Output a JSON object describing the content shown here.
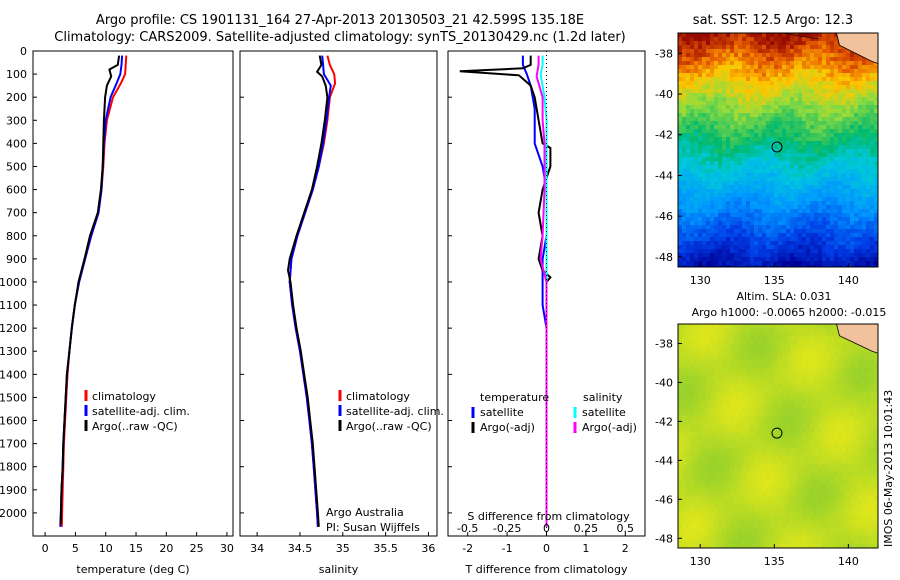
{
  "figure": {
    "title_line1": "Argo profile: CS 1901131_164 27-Apr-2013 20130503_21 42.599S 135.18E",
    "title_line2": "Climatology: CARS2009. Satellite-adjusted climatology: synTS_20130429.nc (1.2d later)",
    "timestamp": "IMOS 06-May-2013 10:01:43",
    "credit_line1": "Argo Australia",
    "credit_line2": "PI: Susan Wijffels"
  },
  "colors": {
    "climatology": "#ff0000",
    "satellite": "#0000ff",
    "argo": "#000000",
    "salinity_satellite": "#00ffff",
    "salinity_argo": "#ff00ff",
    "land": "#f2c29c"
  },
  "chart_data": [
    {
      "type": "line",
      "id": "temperature",
      "xlabel": "temperature (deg C)",
      "ylabel": "",
      "xlim": [
        -2,
        31
      ],
      "ylim": [
        2100,
        0
      ],
      "xticks": [
        0,
        5,
        10,
        15,
        20,
        25,
        30
      ],
      "yticks": [
        0,
        100,
        200,
        300,
        400,
        500,
        600,
        700,
        800,
        900,
        1000,
        1100,
        1200,
        1300,
        1400,
        1500,
        1600,
        1700,
        1800,
        1900,
        2000
      ],
      "legend": {
        "position": "lower-right",
        "entries": [
          "climatology",
          "satellite-adj. clim.",
          "Argo(..raw -QC)"
        ]
      },
      "series": [
        {
          "name": "climatology",
          "color": "#ff0000",
          "points": [
            [
              13.4,
              20
            ],
            [
              13.3,
              60
            ],
            [
              13.2,
              100
            ],
            [
              12.5,
              140
            ],
            [
              11.2,
              200
            ],
            [
              10.2,
              300
            ],
            [
              9.8,
              400
            ],
            [
              9.6,
              500
            ],
            [
              9.3,
              600
            ],
            [
              8.8,
              700
            ],
            [
              7.6,
              800
            ],
            [
              6.6,
              900
            ],
            [
              5.6,
              1000
            ],
            [
              4.9,
              1100
            ],
            [
              4.4,
              1200
            ],
            [
              4.0,
              1300
            ],
            [
              3.7,
              1400
            ],
            [
              3.5,
              1500
            ],
            [
              3.3,
              1600
            ],
            [
              3.1,
              1700
            ],
            [
              3.0,
              1800
            ],
            [
              2.9,
              1900
            ],
            [
              2.8,
              2000
            ],
            [
              2.75,
              2060
            ]
          ]
        },
        {
          "name": "satellite-adj. clim.",
          "color": "#0000ff",
          "points": [
            [
              12.7,
              20
            ],
            [
              12.6,
              60
            ],
            [
              12.4,
              100
            ],
            [
              11.8,
              140
            ],
            [
              10.8,
              200
            ],
            [
              10.0,
              300
            ],
            [
              9.7,
              400
            ],
            [
              9.5,
              500
            ],
            [
              9.3,
              600
            ],
            [
              8.8,
              700
            ],
            [
              7.6,
              800
            ],
            [
              6.6,
              900
            ],
            [
              5.6,
              1000
            ],
            [
              4.9,
              1100
            ],
            [
              4.4,
              1200
            ],
            [
              4.0,
              1300
            ],
            [
              3.6,
              1400
            ],
            [
              3.4,
              1500
            ],
            [
              3.2,
              1600
            ],
            [
              3.0,
              1700
            ],
            [
              2.9,
              1800
            ],
            [
              2.7,
              1900
            ],
            [
              2.6,
              2000
            ],
            [
              2.5,
              2060
            ]
          ]
        },
        {
          "name": "Argo(..raw -QC)",
          "color": "#000000",
          "points": [
            [
              12.2,
              20
            ],
            [
              12.0,
              60
            ],
            [
              10.6,
              80
            ],
            [
              10.9,
              110
            ],
            [
              10.2,
              150
            ],
            [
              9.9,
              200
            ],
            [
              9.7,
              300
            ],
            [
              9.6,
              400
            ],
            [
              9.5,
              500
            ],
            [
              9.2,
              600
            ],
            [
              8.7,
              700
            ],
            [
              7.4,
              800
            ],
            [
              6.5,
              900
            ],
            [
              5.5,
              1000
            ],
            [
              4.9,
              1100
            ],
            [
              4.4,
              1200
            ],
            [
              4.0,
              1300
            ],
            [
              3.6,
              1400
            ],
            [
              3.4,
              1500
            ],
            [
              3.2,
              1600
            ],
            [
              3.0,
              1700
            ],
            [
              2.9,
              1800
            ],
            [
              2.7,
              1900
            ],
            [
              2.6,
              2000
            ],
            [
              2.55,
              2050
            ]
          ]
        }
      ]
    },
    {
      "type": "line",
      "id": "salinity",
      "xlabel": "salinity",
      "ylabel": "",
      "xlim": [
        33.8,
        36.1
      ],
      "ylim": [
        2100,
        0
      ],
      "xticks": [
        34,
        34.5,
        35,
        35.5,
        36
      ],
      "legend": {
        "position": "lower-right",
        "entries": [
          "climatology",
          "satellite-adj. clim.",
          "Argo(..raw -QC)"
        ]
      },
      "series": [
        {
          "name": "climatology",
          "color": "#ff0000",
          "points": [
            [
              34.82,
              20
            ],
            [
              34.85,
              60
            ],
            [
              34.9,
              100
            ],
            [
              34.91,
              140
            ],
            [
              34.85,
              200
            ],
            [
              34.82,
              300
            ],
            [
              34.78,
              400
            ],
            [
              34.72,
              500
            ],
            [
              34.65,
              600
            ],
            [
              34.56,
              700
            ],
            [
              34.47,
              800
            ],
            [
              34.4,
              900
            ],
            [
              34.38,
              1000
            ],
            [
              34.41,
              1100
            ],
            [
              34.45,
              1200
            ],
            [
              34.5,
              1300
            ],
            [
              34.54,
              1400
            ],
            [
              34.58,
              1500
            ],
            [
              34.61,
              1600
            ],
            [
              34.64,
              1700
            ],
            [
              34.66,
              1800
            ],
            [
              34.68,
              1900
            ],
            [
              34.7,
              2000
            ],
            [
              34.71,
              2060
            ]
          ]
        },
        {
          "name": "satellite-adj. clim.",
          "color": "#0000ff",
          "points": [
            [
              34.76,
              20
            ],
            [
              34.77,
              60
            ],
            [
              34.78,
              100
            ],
            [
              34.86,
              150
            ],
            [
              34.84,
              200
            ],
            [
              34.81,
              300
            ],
            [
              34.77,
              400
            ],
            [
              34.72,
              500
            ],
            [
              34.65,
              600
            ],
            [
              34.56,
              700
            ],
            [
              34.47,
              800
            ],
            [
              34.4,
              900
            ],
            [
              34.38,
              1000
            ],
            [
              34.41,
              1100
            ],
            [
              34.45,
              1200
            ],
            [
              34.5,
              1300
            ],
            [
              34.54,
              1400
            ],
            [
              34.58,
              1500
            ],
            [
              34.61,
              1600
            ],
            [
              34.64,
              1700
            ],
            [
              34.66,
              1800
            ],
            [
              34.68,
              1900
            ],
            [
              34.7,
              2000
            ],
            [
              34.71,
              2060
            ]
          ]
        },
        {
          "name": "Argo(..raw -QC)",
          "color": "#000000",
          "points": [
            [
              34.73,
              20
            ],
            [
              34.75,
              60
            ],
            [
              34.7,
              90
            ],
            [
              34.76,
              110
            ],
            [
              34.8,
              150
            ],
            [
              34.82,
              200
            ],
            [
              34.79,
              300
            ],
            [
              34.75,
              400
            ],
            [
              34.7,
              500
            ],
            [
              34.64,
              600
            ],
            [
              34.55,
              700
            ],
            [
              34.46,
              800
            ],
            [
              34.38,
              900
            ],
            [
              34.36,
              950
            ],
            [
              34.39,
              1000
            ],
            [
              34.42,
              1100
            ],
            [
              34.46,
              1200
            ],
            [
              34.51,
              1300
            ],
            [
              34.55,
              1400
            ],
            [
              34.59,
              1500
            ],
            [
              34.62,
              1600
            ],
            [
              34.65,
              1700
            ],
            [
              34.67,
              1800
            ],
            [
              34.69,
              1900
            ],
            [
              34.71,
              2000
            ],
            [
              34.72,
              2060
            ]
          ]
        }
      ]
    },
    {
      "type": "line",
      "id": "difference",
      "xlabel": "T difference from climatology",
      "xlabel_top": "S difference from climatology",
      "xlim": [
        -2.5,
        2.5
      ],
      "ylim": [
        2100,
        0
      ],
      "xticks": [
        -2,
        -1,
        0,
        1,
        2
      ],
      "xtick_labels_top": [
        "-0.5",
        "-0.25",
        "0",
        "0.25",
        "0.5"
      ],
      "legend": {
        "position": "lower",
        "titles": [
          "temperature",
          "salinity"
        ],
        "entries": [
          "satellite",
          "Argo(-adj)",
          "satellite",
          "Argo(-adj)"
        ]
      },
      "series": [
        {
          "name": "satellite",
          "group": "temperature",
          "color": "#0000ff",
          "points": [
            [
              -0.6,
              20
            ],
            [
              -0.6,
              60
            ],
            [
              -0.5,
              100
            ],
            [
              -0.4,
              150
            ],
            [
              -0.3,
              250
            ],
            [
              -0.3,
              400
            ],
            [
              -0.1,
              500
            ],
            [
              0,
              600
            ],
            [
              0,
              800
            ],
            [
              -0.1,
              900
            ],
            [
              -0.1,
              1000
            ],
            [
              -0.1,
              1100
            ],
            [
              0,
              1200
            ],
            [
              0,
              1500
            ],
            [
              0,
              2060
            ]
          ]
        },
        {
          "name": "Argo(-adj)",
          "group": "temperature",
          "color": "#000000",
          "points": [
            [
              -0.4,
              20
            ],
            [
              -0.4,
              60
            ],
            [
              -0.6,
              75
            ],
            [
              -2.2,
              88
            ],
            [
              -0.7,
              105
            ],
            [
              -0.4,
              150
            ],
            [
              -0.3,
              200
            ],
            [
              -0.2,
              300
            ],
            [
              -0.1,
              400
            ],
            [
              0.1,
              420
            ],
            [
              0.1,
              500
            ],
            [
              -0.1,
              600
            ],
            [
              -0.2,
              700
            ],
            [
              -0.1,
              800
            ],
            [
              -0.2,
              900
            ],
            [
              -0.1,
              950
            ],
            [
              0.1,
              980
            ],
            [
              0,
              1000
            ],
            [
              0,
              1200
            ],
            [
              0,
              1500
            ],
            [
              0,
              2060
            ]
          ]
        },
        {
          "name": "satellite",
          "group": "salinity",
          "color": "#00ffff",
          "points": [
            [
              -0.1,
              20
            ],
            [
              -0.1,
              60
            ],
            [
              -0.15,
              100
            ],
            [
              -0.05,
              200
            ],
            [
              0,
              300
            ],
            [
              0,
              400
            ],
            [
              0,
              500
            ],
            [
              0,
              700
            ],
            [
              0,
              1000
            ],
            [
              0,
              1500
            ],
            [
              0,
              2060
            ]
          ]
        },
        {
          "name": "Argo(-adj)",
          "group": "salinity",
          "color": "#ff00ff",
          "points": [
            [
              -0.2,
              20
            ],
            [
              -0.2,
              60
            ],
            [
              -0.25,
              110
            ],
            [
              -0.1,
              200
            ],
            [
              -0.1,
              300
            ],
            [
              -0.05,
              400
            ],
            [
              -0.05,
              600
            ],
            [
              -0.1,
              800
            ],
            [
              -0.15,
              900
            ],
            [
              0,
              1000
            ],
            [
              0,
              1200
            ],
            [
              0,
              2060
            ]
          ]
        }
      ]
    },
    {
      "type": "heatmap",
      "id": "sst-map",
      "title": "sat. SST: 12.5 Argo: 12.3",
      "xlim": [
        128.5,
        142
      ],
      "ylim": [
        -48.5,
        -37
      ],
      "xticks": [
        130,
        135,
        140
      ],
      "yticks": [
        -38,
        -40,
        -42,
        -44,
        -46,
        -48
      ],
      "marker": {
        "lon": 135.18,
        "lat": -42.6
      }
    },
    {
      "type": "heatmap",
      "id": "sla-map",
      "title_line1": "Altim. SLA: 0.031",
      "title_line2": "Argo h1000: -0.0065 h2000: -0.015",
      "xlim": [
        128.5,
        142
      ],
      "ylim": [
        -48.5,
        -37
      ],
      "xticks": [
        130,
        135,
        140
      ],
      "yticks": [
        -38,
        -40,
        -42,
        -44,
        -46,
        -48
      ],
      "marker": {
        "lon": 135.18,
        "lat": -42.6
      }
    }
  ]
}
